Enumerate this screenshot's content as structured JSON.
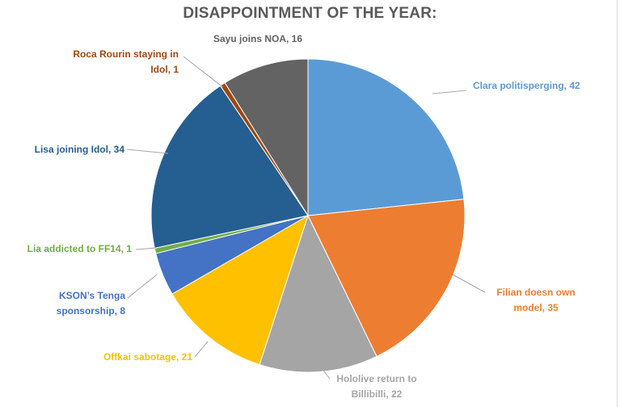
{
  "chart_data": {
    "type": "pie",
    "title": "DISAPPOINTMENT OF THE YEAR:",
    "start_angle_deg": 0,
    "direction": "clockwise",
    "slices": [
      {
        "label": "Clara politisperging",
        "value": 42,
        "color": "#5B9BD5",
        "display": [
          "Clara politisperging, 42"
        ]
      },
      {
        "label": "Filian doesn own model",
        "value": 35,
        "color": "#ED7D31",
        "display": [
          "Filian doesn own",
          "model, 35"
        ]
      },
      {
        "label": "Hololive return to Billibilli",
        "value": 22,
        "color": "#A5A5A5",
        "display": [
          "Hololive return to",
          "Billibilli, 22"
        ]
      },
      {
        "label": "Offkai sabotage",
        "value": 21,
        "color": "#FFC000",
        "display": [
          "Offkai sabotage, 21"
        ]
      },
      {
        "label": "KSON’s Tenga sponsorship",
        "value": 8,
        "color": "#4472C4",
        "display": [
          "KSON’s Tenga",
          "sponsorship, 8"
        ]
      },
      {
        "label": "Lia addicted to FF14",
        "value": 1,
        "color": "#70AD47",
        "display": [
          "Lia addicted to FF14, 1"
        ]
      },
      {
        "label": "Lisa joining Idol",
        "value": 34,
        "color": "#255E91",
        "display": [
          "Lisa joining Idol, 34"
        ]
      },
      {
        "label": "Roca Rourin staying in Idol",
        "value": 1,
        "color": "#9E480E",
        "display": [
          "Roca Rourin staying in",
          "Idol, 1"
        ]
      },
      {
        "label": "Sayu joins NOA",
        "value": 16,
        "color": "#636363",
        "display": [
          "Sayu joins NOA, 16"
        ]
      }
    ]
  }
}
